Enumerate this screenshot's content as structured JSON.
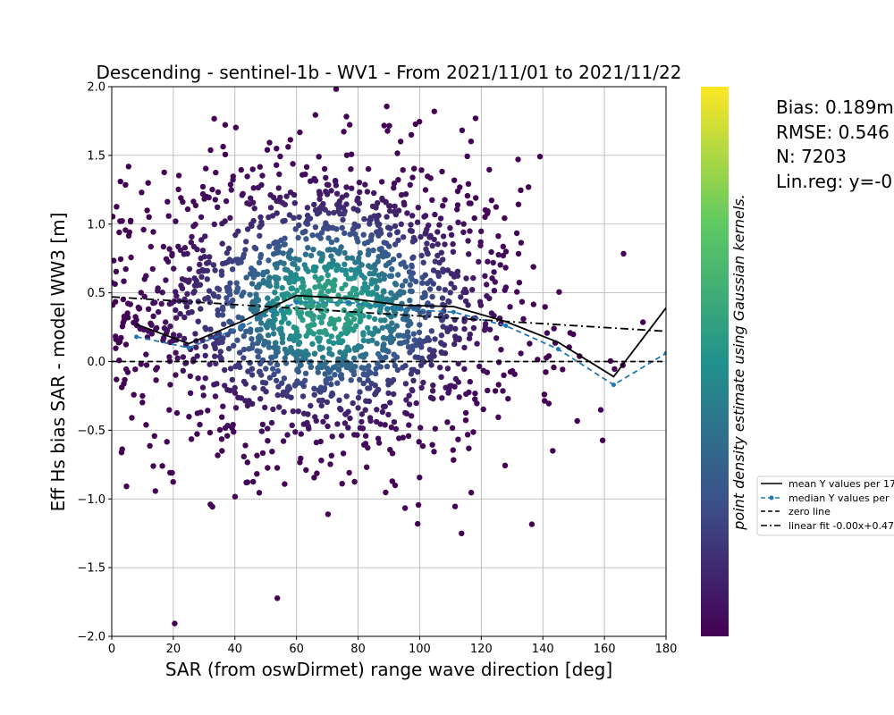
{
  "chart_data": {
    "type": "scatter",
    "title": "Descending - sentinel-1b - WV1 - From 2021/11/01 to 2021/11/22",
    "xlabel": "SAR (from oswDirmet) range wave direction [deg]",
    "ylabel": "Eff Hs bias SAR - model WW3 [m]",
    "xlim": [
      0,
      180
    ],
    "ylim": [
      -2.0,
      2.0
    ],
    "xticks": [
      "0",
      "20",
      "40",
      "60",
      "80",
      "100",
      "120",
      "140",
      "160",
      "180"
    ],
    "yticks": [
      "−2.0",
      "−1.5",
      "−1.0",
      "−0.5",
      "0.0",
      "0.5",
      "1.0",
      "1.5",
      "2.0"
    ],
    "grid": true,
    "colorbar_label": "point density estimate using Gaussian kernels.",
    "colormap": [
      "#440154",
      "#3b528b",
      "#21918c",
      "#5ec962",
      "#fde725"
    ],
    "stats": {
      "bias": "Bias: 0.189m",
      "rmse": "RMSE: 0.546",
      "n": "N: 7203",
      "linreg": "Lin.reg: y=-0"
    },
    "legend_position": "outside-right",
    "legend": [
      {
        "label": "mean Y values per 17",
        "style": "solid",
        "color": "#000000"
      },
      {
        "label": "median Y values per",
        "style": "dashed-marker",
        "color": "#1f77b4"
      },
      {
        "label": "zero line",
        "style": "dashed",
        "color": "#000000"
      },
      {
        "label": "linear fit -0.00x+0.47",
        "style": "dashdot",
        "color": "#000000"
      }
    ],
    "series": [
      {
        "name": "mean Y values per 17",
        "x": [
          8,
          25,
          42,
          60,
          77,
          94,
          111,
          128,
          145,
          163,
          180
        ],
        "y": [
          0.27,
          0.13,
          0.29,
          0.48,
          0.46,
          0.41,
          0.4,
          0.29,
          0.14,
          -0.11,
          0.39
        ]
      },
      {
        "name": "median Y values per",
        "x": [
          8,
          25,
          42,
          60,
          77,
          94,
          111,
          128,
          145,
          163,
          180
        ],
        "y": [
          0.18,
          0.1,
          0.25,
          0.43,
          0.43,
          0.38,
          0.36,
          0.26,
          0.09,
          -0.17,
          0.06
        ]
      },
      {
        "name": "zero line",
        "x": [
          0,
          180
        ],
        "y": [
          0,
          0
        ]
      },
      {
        "name": "linear fit -0.00x+0.47",
        "x": [
          0,
          180
        ],
        "y": [
          0.47,
          0.22
        ]
      }
    ],
    "scatter_description_params": {
      "count_drawn": 1900,
      "center_x": 70,
      "center_y": 0.4,
      "spread_x": 32,
      "spread_y": 0.55
    }
  }
}
